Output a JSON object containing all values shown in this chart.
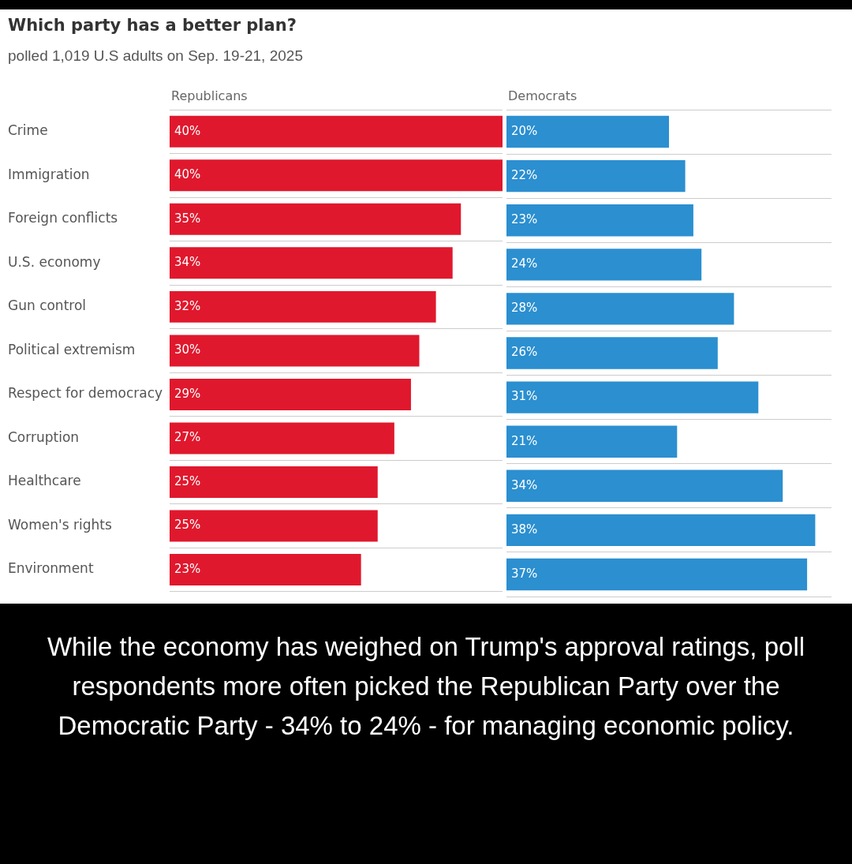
{
  "chart_data": [
    {
      "type": "bar",
      "title": "Which party has a better plan?",
      "subtitle": "polled 1,019 U.S adults on Sep. 19-21, 2025",
      "orientation": "horizontal",
      "categories": [
        "Crime",
        "Immigration",
        "Foreign conflicts",
        "U.S. economy",
        "Gun control",
        "Political extremism",
        "Respect for democracy",
        "Corruption",
        "Healthcare",
        "Women's rights",
        "Environment"
      ],
      "series": [
        {
          "name": "Republicans",
          "color": "#e0182d",
          "values": [
            40,
            40,
            35,
            34,
            32,
            30,
            29,
            27,
            25,
            25,
            23
          ],
          "value_labels": [
            "40%",
            "40%",
            "35%",
            "34%",
            "32%",
            "30%",
            "29%",
            "27%",
            "25%",
            "25%",
            "23%"
          ]
        }
      ],
      "grid": "y",
      "tick_labels": "y",
      "annotations": [
        "While the economy has weighed on Trump's approval ratings, poll respondents more often picked the Republican Party over the Democratic Party - 34% to 24% - for managing economic policy."
      ]
    },
    {
      "type": "bar",
      "orientation": "horizontal",
      "categories": [
        null,
        null,
        null,
        null,
        null,
        null,
        null,
        null,
        null,
        null,
        null
      ],
      "series": [
        {
          "name": "Democrats",
          "color": "#2b8fd0",
          "values": [
            20,
            22,
            23,
            24,
            28,
            26,
            31,
            21,
            34,
            38,
            37
          ],
          "value_labels": [
            "20%",
            "22%",
            "23%",
            "24%",
            "28%",
            "26%",
            "31%",
            "21%",
            "34%",
            "38%",
            "37%"
          ]
        }
      ],
      "grid": "y",
      "tick_labels": false
    }
  ]
}
